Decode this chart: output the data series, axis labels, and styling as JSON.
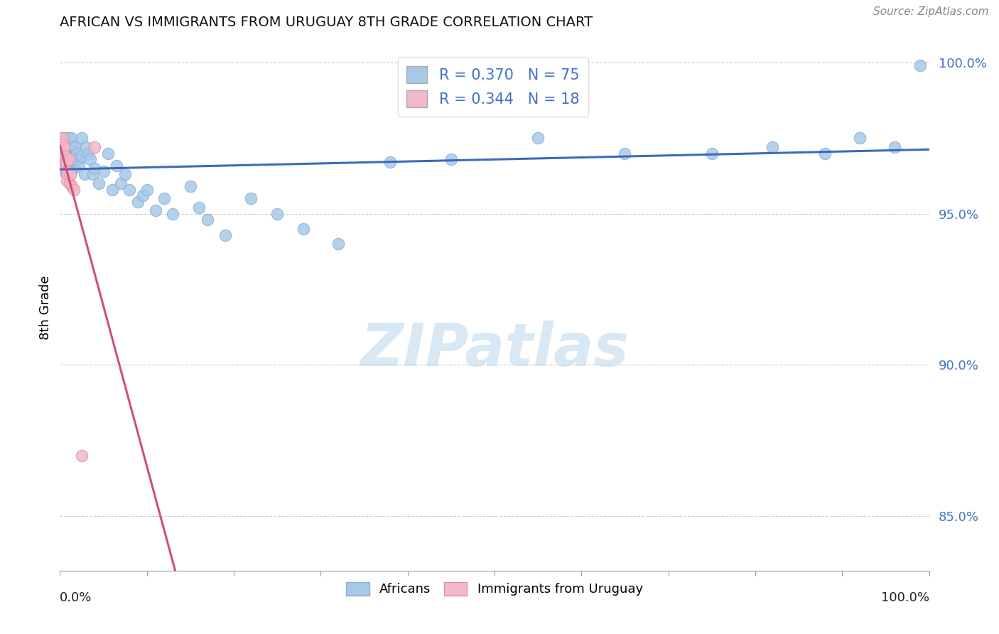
{
  "title": "AFRICAN VS IMMIGRANTS FROM URUGUAY 8TH GRADE CORRELATION CHART",
  "source": "Source: ZipAtlas.com",
  "ylabel": "8th Grade",
  "legend_africans": "Africans",
  "legend_uruguay": "Immigrants from Uruguay",
  "R_african": 0.37,
  "N_african": 75,
  "R_uruguay": 0.344,
  "N_uruguay": 18,
  "african_color": "#a8c8e8",
  "african_edge": "#8ab0d8",
  "uruguay_color": "#f4b8c8",
  "uruguay_edge": "#e090a8",
  "african_line_color": "#3a6abf",
  "uruguay_line_color": "#d05070",
  "xlim": [
    0.0,
    1.0
  ],
  "ylim": [
    0.832,
    1.006
  ],
  "yticks": [
    0.85,
    0.9,
    0.95,
    1.0
  ],
  "ytick_labels": [
    "85.0%",
    "90.0%",
    "95.0%",
    "100.0%"
  ],
  "watermark_color": "#d8e8f4",
  "background": "#ffffff",
  "african_x": [
    0.002,
    0.003,
    0.003,
    0.004,
    0.004,
    0.005,
    0.005,
    0.005,
    0.006,
    0.006,
    0.006,
    0.007,
    0.007,
    0.008,
    0.008,
    0.009,
    0.009,
    0.01,
    0.01,
    0.01,
    0.011,
    0.011,
    0.012,
    0.012,
    0.013,
    0.013,
    0.014,
    0.015,
    0.015,
    0.016,
    0.017,
    0.018,
    0.019,
    0.02,
    0.022,
    0.025,
    0.025,
    0.028,
    0.03,
    0.032,
    0.035,
    0.038,
    0.04,
    0.045,
    0.05,
    0.055,
    0.06,
    0.065,
    0.07,
    0.075,
    0.08,
    0.09,
    0.095,
    0.1,
    0.11,
    0.12,
    0.13,
    0.15,
    0.16,
    0.17,
    0.19,
    0.22,
    0.25,
    0.28,
    0.32,
    0.38,
    0.45,
    0.55,
    0.65,
    0.75,
    0.82,
    0.88,
    0.92,
    0.96,
    0.99
  ],
  "african_y": [
    0.968,
    0.971,
    0.975,
    0.973,
    0.969,
    0.972,
    0.967,
    0.964,
    0.975,
    0.97,
    0.966,
    0.973,
    0.968,
    0.972,
    0.964,
    0.97,
    0.965,
    0.975,
    0.969,
    0.963,
    0.972,
    0.966,
    0.971,
    0.963,
    0.975,
    0.968,
    0.97,
    0.972,
    0.965,
    0.969,
    0.967,
    0.972,
    0.97,
    0.968,
    0.966,
    0.975,
    0.969,
    0.963,
    0.972,
    0.97,
    0.968,
    0.963,
    0.965,
    0.96,
    0.964,
    0.97,
    0.958,
    0.966,
    0.96,
    0.963,
    0.958,
    0.954,
    0.956,
    0.958,
    0.951,
    0.955,
    0.95,
    0.959,
    0.952,
    0.948,
    0.943,
    0.955,
    0.95,
    0.945,
    0.94,
    0.967,
    0.968,
    0.975,
    0.97,
    0.97,
    0.972,
    0.97,
    0.975,
    0.972,
    0.999
  ],
  "uruguay_x": [
    0.002,
    0.003,
    0.004,
    0.004,
    0.005,
    0.006,
    0.006,
    0.007,
    0.008,
    0.008,
    0.009,
    0.01,
    0.011,
    0.012,
    0.014,
    0.016,
    0.025,
    0.04
  ],
  "uruguay_y": [
    0.974,
    0.975,
    0.973,
    0.97,
    0.972,
    0.969,
    0.966,
    0.967,
    0.964,
    0.961,
    0.963,
    0.968,
    0.96,
    0.963,
    0.959,
    0.958,
    0.87,
    0.972
  ]
}
